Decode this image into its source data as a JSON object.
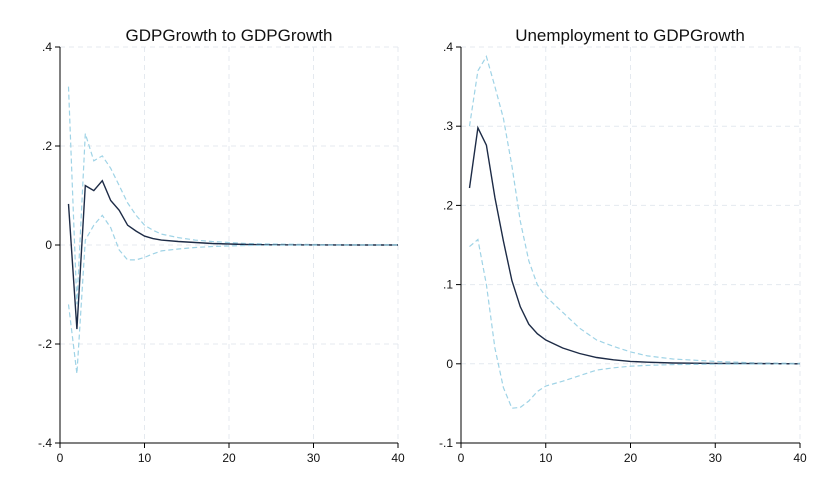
{
  "chart_data": [
    {
      "type": "line",
      "title": "GDPGrowth to GDPGrowth",
      "xlabel": "",
      "ylabel": "",
      "xlim": [
        0,
        40
      ],
      "ylim": [
        -0.4,
        0.4
      ],
      "xticks": [
        0,
        10,
        20,
        30,
        40
      ],
      "xtick_labels": [
        "0",
        "10",
        "20",
        "30",
        "40"
      ],
      "yticks": [
        -0.4,
        -0.2,
        0,
        0.2,
        0.4
      ],
      "ytick_labels": [
        "-.4",
        "-.2",
        "0",
        ".2",
        ".4"
      ],
      "grid": true,
      "x": [
        1,
        2,
        3,
        4,
        5,
        6,
        7,
        8,
        9,
        10,
        11,
        12,
        14,
        16,
        18,
        20,
        22,
        25,
        30,
        35,
        40
      ],
      "series": [
        {
          "role": "upper",
          "style": "dashed",
          "color": "#9fd3e6",
          "values": [
            0.32,
            -0.12,
            0.225,
            0.17,
            0.18,
            0.155,
            0.12,
            0.085,
            0.06,
            0.04,
            0.03,
            0.022,
            0.015,
            0.01,
            0.007,
            0.005,
            0.003,
            0.002,
            0.001,
            0.0005,
            0.0002
          ]
        },
        {
          "role": "estimate",
          "style": "solid",
          "color": "#1d2b46",
          "values": [
            0.083,
            -0.17,
            0.12,
            0.11,
            0.13,
            0.09,
            0.07,
            0.04,
            0.028,
            0.018,
            0.013,
            0.01,
            0.007,
            0.005,
            0.003,
            0.002,
            0.001,
            0.0005,
            0.0002,
            0.0001,
            0.0
          ]
        },
        {
          "role": "lower",
          "style": "dashed",
          "color": "#9fd3e6",
          "values": [
            -0.12,
            -0.26,
            0.01,
            0.04,
            0.06,
            0.035,
            -0.01,
            -0.03,
            -0.03,
            -0.025,
            -0.018,
            -0.012,
            -0.008,
            -0.005,
            -0.003,
            -0.002,
            -0.001,
            -0.0005,
            -0.0002,
            -0.0001,
            0.0
          ]
        }
      ]
    },
    {
      "type": "line",
      "title": "Unemployment to GDPGrowth",
      "xlabel": "",
      "ylabel": "",
      "xlim": [
        0,
        40
      ],
      "ylim": [
        -0.1,
        0.4
      ],
      "xticks": [
        0,
        10,
        20,
        30,
        40
      ],
      "xtick_labels": [
        "0",
        "10",
        "20",
        "30",
        "40"
      ],
      "yticks": [
        -0.1,
        0,
        0.1,
        0.2,
        0.3,
        0.4
      ],
      "ytick_labels": [
        "-.1",
        "0",
        ".1",
        ".2",
        ".3",
        ".4"
      ],
      "grid": true,
      "x": [
        1,
        2,
        3,
        4,
        5,
        6,
        7,
        8,
        9,
        10,
        12,
        14,
        16,
        18,
        20,
        22,
        25,
        30,
        35,
        40
      ],
      "series": [
        {
          "role": "upper",
          "style": "dashed",
          "color": "#9fd3e6",
          "values": [
            0.3,
            0.37,
            0.388,
            0.35,
            0.31,
            0.25,
            0.18,
            0.13,
            0.1,
            0.085,
            0.065,
            0.045,
            0.03,
            0.022,
            0.015,
            0.01,
            0.006,
            0.003,
            0.001,
            0.0005
          ]
        },
        {
          "role": "estimate",
          "style": "solid",
          "color": "#1d2b46",
          "values": [
            0.222,
            0.298,
            0.276,
            0.21,
            0.155,
            0.105,
            0.072,
            0.05,
            0.038,
            0.03,
            0.02,
            0.013,
            0.008,
            0.005,
            0.003,
            0.002,
            0.001,
            0.0005,
            0.0002,
            0.0
          ]
        },
        {
          "role": "lower",
          "style": "dashed",
          "color": "#9fd3e6",
          "values": [
            0.148,
            0.157,
            0.1,
            0.02,
            -0.03,
            -0.056,
            -0.055,
            -0.047,
            -0.035,
            -0.028,
            -0.022,
            -0.015,
            -0.008,
            -0.005,
            -0.003,
            -0.002,
            -0.001,
            -0.0005,
            -0.0002,
            0.0
          ]
        }
      ]
    }
  ]
}
